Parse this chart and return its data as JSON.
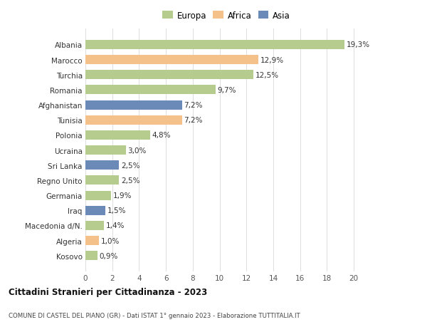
{
  "countries": [
    "Albania",
    "Marocco",
    "Turchia",
    "Romania",
    "Afghanistan",
    "Tunisia",
    "Polonia",
    "Ucraina",
    "Sri Lanka",
    "Regno Unito",
    "Germania",
    "Iraq",
    "Macedonia d/N.",
    "Algeria",
    "Kosovo"
  ],
  "values": [
    19.3,
    12.9,
    12.5,
    9.7,
    7.2,
    7.2,
    4.8,
    3.0,
    2.5,
    2.5,
    1.9,
    1.5,
    1.4,
    1.0,
    0.9
  ],
  "continents": [
    "Europa",
    "Africa",
    "Europa",
    "Europa",
    "Asia",
    "Africa",
    "Europa",
    "Europa",
    "Asia",
    "Europa",
    "Europa",
    "Asia",
    "Europa",
    "Africa",
    "Europa"
  ],
  "continent_colors": {
    "Europa": "#b5cc8e",
    "Africa": "#f5c18a",
    "Asia": "#6b8ab8"
  },
  "legend_labels": [
    "Europa",
    "Africa",
    "Asia"
  ],
  "legend_colors": [
    "#b5cc8e",
    "#f5c18a",
    "#6b8ab8"
  ],
  "title": "Cittadini Stranieri per Cittadinanza - 2023",
  "subtitle": "COMUNE DI CASTEL DEL PIANO (GR) - Dati ISTAT 1° gennaio 2023 - Elaborazione TUTTITALIA.IT",
  "xlim": [
    0,
    21
  ],
  "xticks": [
    0,
    2,
    4,
    6,
    8,
    10,
    12,
    14,
    16,
    18,
    20
  ],
  "bg_color": "#ffffff",
  "grid_color": "#dddddd"
}
